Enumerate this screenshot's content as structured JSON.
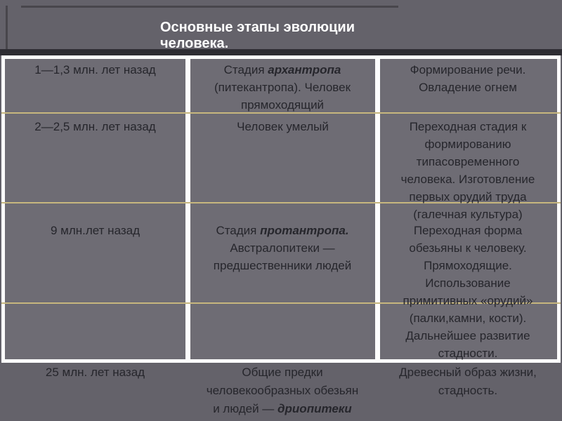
{
  "title": {
    "line1": "Основные этапы эволюции",
    "line2": "человека."
  },
  "table": {
    "col1": {
      "row1": "1—1,3 млн. лет назад",
      "row2": "2—2,5 млн. лет назад",
      "row3": "9 млн.лет назад"
    },
    "col2": {
      "row1_prefix": "Стадия ",
      "row1_bold": "архантропа",
      "row1_rest": " (питекантропа).  Человек прямоходящий",
      "row2": "Человек умелый",
      "row3_prefix": "Стадия ",
      "row3_bold": "протантропа.",
      "row3_rest": " Австралопитеки — предшественники людей"
    },
    "col3": {
      "row1": "Формирование речи. Овладение огнем",
      "row2": "Переходная стадия к формированию типасовременного человека. Изготовление первых орудий труда (галечная культура)",
      "row3": "Переходная форма обезьяны к человеку. Прямоходящие. Использование примитивных «орудий» (палки,камни, кости). Дальнейшее развитие стадности."
    }
  },
  "below_table": {
    "col1": "25 млн. лет назад",
    "col2_prefix": "Общие предки человекообразных обезьян и людей — ",
    "col2_bold": "дриопитеки",
    "col3": "Древесный образ жизни, стадность."
  },
  "colors": {
    "background": "#64626a",
    "cell_background": "#6e6c74",
    "table_border": "#fdfdfd",
    "dark_rule": "#2e2d33",
    "row_line": "#c7b77e",
    "title_text": "#ffffff",
    "cell_text": "#26262c"
  }
}
